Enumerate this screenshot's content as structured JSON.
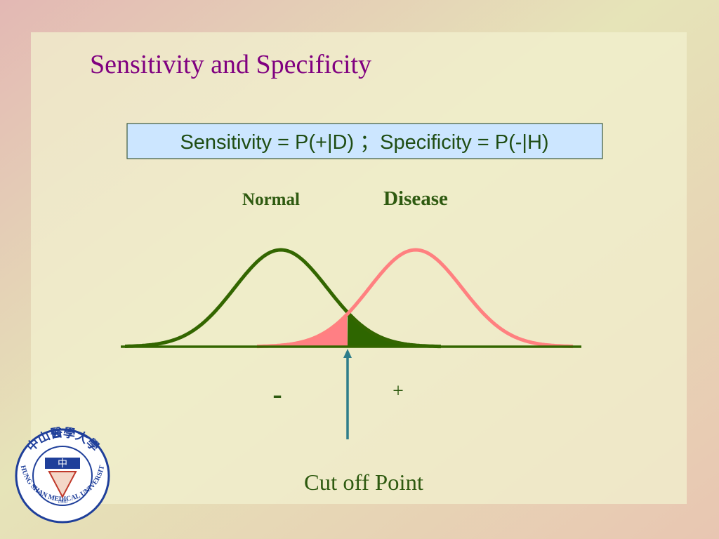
{
  "title": "Sensitivity and Specificity",
  "formula": "Sensitivity = P(+|D) ；Specificity = P(-|H)",
  "labels": {
    "normal": "Normal",
    "disease": "Disease",
    "negative": "-",
    "positive": "+",
    "cutoff": "Cut off Point"
  },
  "logo": {
    "name_zh": "中山醫學大學",
    "name_en": "CHUNG SHAN MEDICAL UNIVERSITY",
    "center": "中",
    "year": "1960"
  }
}
